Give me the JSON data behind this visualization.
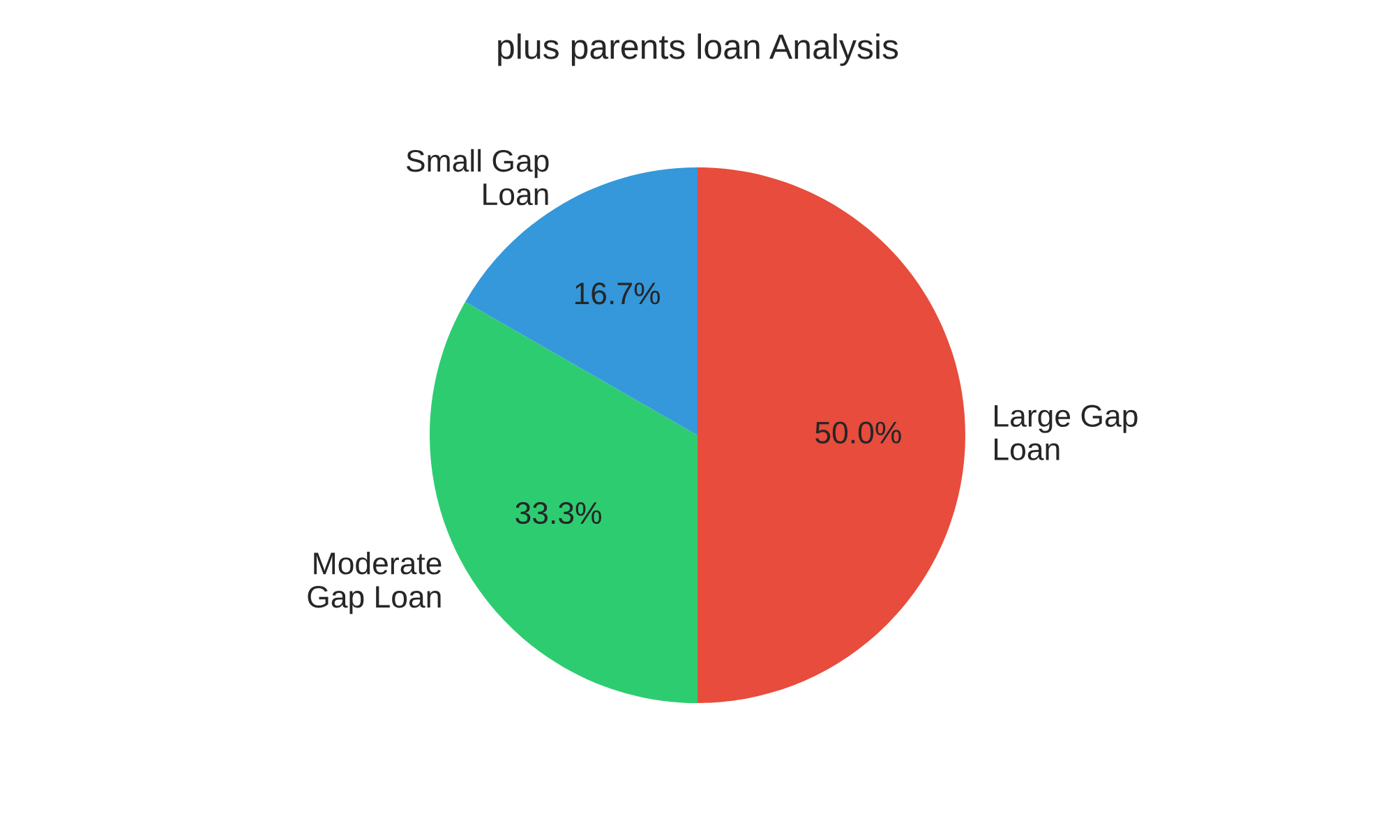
{
  "chart_data": {
    "type": "pie",
    "title": "plus parents loan Analysis",
    "categories": [
      "Large Gap\nLoan",
      "Moderate\nGap Loan",
      "Small Gap\nLoan"
    ],
    "values": [
      50,
      33.3,
      16.7
    ],
    "colors": [
      "#e74c3c",
      "#2ecc71",
      "#3498db"
    ],
    "value_labels": [
      "50.0%",
      "33.3%",
      "16.7%"
    ]
  }
}
